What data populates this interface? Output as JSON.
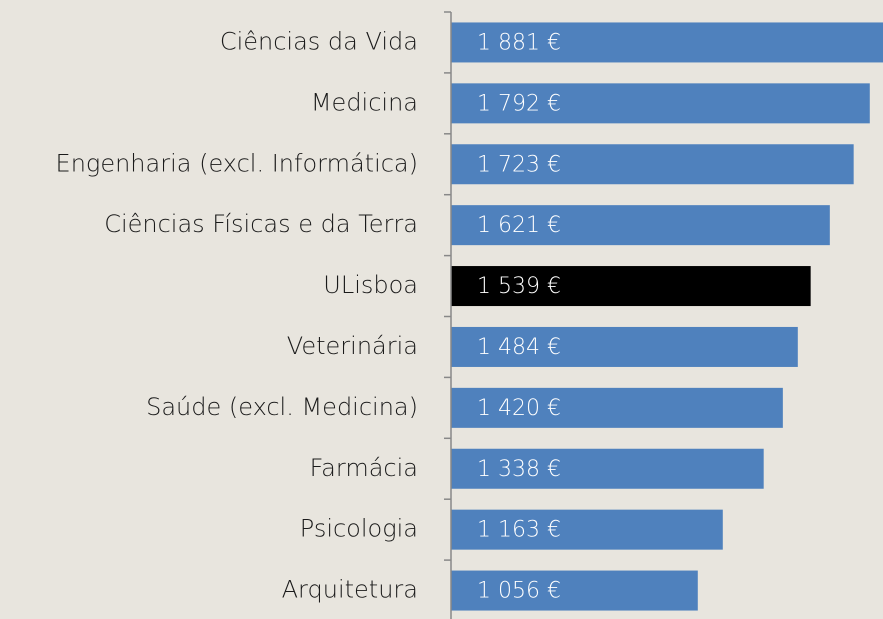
{
  "chart_data": {
    "type": "barh",
    "categories": [
      "Ciências da Vida",
      "Medicina",
      "Engenharia (excl. Informática)",
      "Ciências Físicas e da Terra",
      "ULisboa",
      "Veterinária",
      "Saúde (excl. Medicina)",
      "Farmácia",
      "Psicologia",
      "Arquitetura"
    ],
    "values": [
      1881,
      1792,
      1723,
      1621,
      1539,
      1484,
      1420,
      1338,
      1163,
      1056
    ],
    "value_labels": [
      "1 881 €",
      "1 792 €",
      "1 723 €",
      "1 621 €",
      "1 539 €",
      "1 484 €",
      "1 420 €",
      "1 338 €",
      "1 163 €",
      "1 056 €"
    ],
    "colors": [
      "#4f81bd",
      "#4f81bd",
      "#4f81bd",
      "#4f81bd",
      "#000000",
      "#4f81bd",
      "#4f81bd",
      "#4f81bd",
      "#4f81bd",
      "#4f81bd"
    ]
  }
}
